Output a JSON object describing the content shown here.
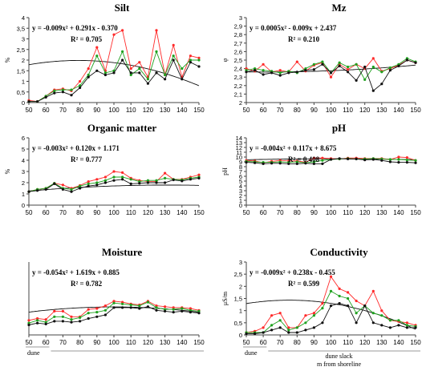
{
  "colors": {
    "red": "#ff2a2a",
    "green": "#1fa11f",
    "black": "#111111",
    "trend": "#111111",
    "axis": "#444444",
    "grid": "#bbbbbb"
  },
  "x_ticks": [
    50,
    60,
    70,
    80,
    90,
    100,
    110,
    120,
    130,
    140,
    150
  ],
  "x_values": [
    50,
    55,
    60,
    65,
    70,
    75,
    80,
    85,
    90,
    95,
    100,
    105,
    110,
    115,
    120,
    125,
    130,
    135,
    140,
    145,
    150
  ],
  "footer": {
    "dune_label": "dune",
    "slack_label": "dune slack",
    "axis_title": "m from shoreline"
  },
  "chart_data": [
    {
      "type": "line",
      "title": "Silt",
      "ylabel": "%",
      "ylim": [
        0,
        4
      ],
      "yticks": [
        "0",
        "0,5",
        "1",
        "1,5",
        "2",
        "2,5",
        "3",
        "3,5",
        "4"
      ],
      "xlim": [
        50,
        150
      ],
      "equation": "y = -0.009x² + 0.291x - 0.370",
      "r2": "R² = 0.705",
      "trend_coeffs": [
        -0.000237,
        0.0375,
        0.5
      ],
      "series": [
        {
          "color": "red",
          "values": [
            0.1,
            0.05,
            0.3,
            0.6,
            0.65,
            0.55,
            1.0,
            1.6,
            2.6,
            1.5,
            3.2,
            3.4,
            1.6,
            1.9,
            1.2,
            3.4,
            1.3,
            2.7,
            1.2,
            2.2,
            2.1
          ]
        },
        {
          "color": "green",
          "values": [
            0.05,
            0.05,
            0.3,
            0.55,
            0.6,
            0.6,
            0.8,
            1.3,
            2.2,
            1.4,
            1.5,
            2.4,
            1.3,
            1.6,
            1.1,
            2.4,
            1.3,
            2.2,
            1.6,
            2.0,
            2.0
          ]
        },
        {
          "color": "black",
          "values": [
            0.05,
            0.05,
            0.25,
            0.45,
            0.5,
            0.35,
            0.7,
            1.2,
            1.5,
            1.3,
            1.4,
            2.0,
            1.4,
            1.4,
            0.9,
            1.4,
            1.1,
            2.0,
            1.1,
            1.9,
            1.7
          ]
        }
      ]
    },
    {
      "type": "line",
      "title": "Mz",
      "ylabel": "φ",
      "ylim": [
        2,
        3
      ],
      "yticks": [
        "2",
        "2,1",
        "2,2",
        "2,3",
        "2,4",
        "2,5",
        "2,6",
        "2,7",
        "2,8",
        "2,9",
        "3"
      ],
      "xlim": [
        50,
        150
      ],
      "equation": "y = 0.0005x² - 0.009x + 2.437",
      "r2": "R² = 0.210",
      "trend_coeffs": [
        1.05e-05,
        -0.0013,
        2.4
      ],
      "series": [
        {
          "color": "red",
          "values": [
            2.4,
            2.37,
            2.45,
            2.36,
            2.38,
            2.36,
            2.48,
            2.37,
            2.44,
            2.47,
            2.3,
            2.45,
            2.39,
            2.45,
            2.4,
            2.52,
            2.37,
            2.4,
            2.44,
            2.5,
            2.47
          ]
        },
        {
          "color": "green",
          "values": [
            2.38,
            2.4,
            2.38,
            2.37,
            2.35,
            2.37,
            2.35,
            2.4,
            2.45,
            2.48,
            2.35,
            2.47,
            2.42,
            2.45,
            2.27,
            2.42,
            2.36,
            2.41,
            2.45,
            2.52,
            2.48
          ]
        },
        {
          "color": "black",
          "values": [
            2.36,
            2.38,
            2.33,
            2.35,
            2.32,
            2.35,
            2.36,
            2.38,
            2.39,
            2.45,
            2.35,
            2.43,
            2.36,
            2.26,
            2.42,
            2.14,
            2.22,
            2.38,
            2.43,
            2.5,
            2.47
          ]
        }
      ]
    },
    {
      "type": "line",
      "title": "Organic matter",
      "ylabel": "%",
      "ylim": [
        0,
        6
      ],
      "yticks": [
        "0",
        "1",
        "2",
        "3",
        "4",
        "5",
        "6"
      ],
      "xlim": [
        50,
        150
      ],
      "equation": "y = -0.003x² + 0.120x + 1.171",
      "r2": "R² = 0.777",
      "trend_coeffs": [
        -8e-05,
        0.021,
        0.41
      ],
      "series": [
        {
          "color": "red",
          "values": [
            1.2,
            1.4,
            1.5,
            1.95,
            1.8,
            1.5,
            1.75,
            2.1,
            2.3,
            2.5,
            3.0,
            2.9,
            2.4,
            2.2,
            2.1,
            2.1,
            2.85,
            2.3,
            2.3,
            2.5,
            2.7
          ]
        },
        {
          "color": "green",
          "values": [
            1.2,
            1.4,
            1.5,
            1.95,
            1.5,
            1.4,
            1.7,
            1.9,
            2.0,
            2.2,
            2.5,
            2.5,
            2.3,
            2.1,
            2.2,
            2.2,
            2.4,
            2.3,
            2.25,
            2.4,
            2.5
          ]
        },
        {
          "color": "black",
          "values": [
            1.2,
            1.3,
            1.4,
            1.9,
            1.4,
            1.2,
            1.5,
            1.7,
            1.8,
            2.0,
            2.2,
            2.3,
            1.9,
            1.95,
            2.0,
            2.0,
            2.0,
            2.25,
            2.15,
            2.3,
            2.4
          ]
        }
      ]
    },
    {
      "type": "line",
      "title": "pH",
      "ylabel": "pH",
      "ylim": [
        0,
        14
      ],
      "yticks": [
        "0",
        "1",
        "2",
        "3",
        "4",
        "5",
        "6",
        "7",
        "8",
        "9",
        "10",
        "11",
        "12",
        "13",
        "14"
      ],
      "xlim": [
        50,
        150
      ],
      "equation": "y = -0.004x² + 0.117x + 8.675",
      "r2": "R² = 0.408",
      "trend_coeffs": [
        -7.86e-05,
        0.0157,
        8.85
      ],
      "series": [
        {
          "color": "red",
          "values": [
            9.3,
            9.2,
            8.8,
            9.1,
            9.3,
            9.2,
            9.2,
            8.9,
            9.8,
            9.8,
            9.7,
            9.6,
            9.8,
            9.8,
            9.7,
            9.7,
            9.7,
            9.5,
            10.0,
            9.9,
            9.3
          ]
        },
        {
          "color": "green",
          "values": [
            9.1,
            9.0,
            8.9,
            8.9,
            9.0,
            8.9,
            9.0,
            8.8,
            9.0,
            9.3,
            9.5,
            9.6,
            9.7,
            9.6,
            9.6,
            9.7,
            9.6,
            9.5,
            9.5,
            9.4,
            9.3
          ]
        },
        {
          "color": "black",
          "values": [
            8.9,
            8.8,
            8.6,
            8.7,
            8.7,
            8.6,
            8.6,
            8.7,
            8.6,
            8.6,
            9.5,
            9.7,
            9.6,
            9.6,
            9.4,
            9.5,
            9.3,
            9.0,
            8.9,
            8.9,
            8.8
          ]
        }
      ]
    },
    {
      "type": "line",
      "title": "Moisture",
      "ylabel": "",
      "ylim": [
        0,
        8
      ],
      "yticks": [],
      "xlim": [
        50,
        150
      ],
      "equation": "y = -0.054x² + 1.619x + 0.885",
      "r2": "R² = 0.782",
      "trend_coeffs": [
        -0.000228,
        0.0455,
        0.8
      ],
      "series": [
        {
          "color": "red",
          "values": [
            1.6,
            1.8,
            1.7,
            2.6,
            2.6,
            2.0,
            2.0,
            2.8,
            2.9,
            3.2,
            3.7,
            3.6,
            3.4,
            3.3,
            3.7,
            3.2,
            3.1,
            3.0,
            3.0,
            2.9,
            2.7
          ]
        },
        {
          "color": "green",
          "values": [
            1.3,
            1.6,
            1.4,
            2.0,
            2.0,
            1.7,
            1.9,
            2.4,
            2.5,
            2.7,
            3.5,
            3.4,
            3.3,
            3.2,
            3.6,
            3.0,
            2.8,
            2.8,
            2.9,
            2.7,
            2.6
          ]
        },
        {
          "color": "black",
          "values": [
            1.1,
            1.3,
            1.2,
            1.5,
            1.5,
            1.4,
            1.5,
            1.8,
            2.0,
            2.2,
            3.0,
            3.0,
            3.0,
            2.9,
            3.1,
            2.7,
            2.6,
            2.5,
            2.6,
            2.5,
            2.4
          ]
        }
      ]
    },
    {
      "type": "line",
      "title": "Conductivity",
      "ylabel": "μS/m",
      "ylim": [
        0,
        3
      ],
      "yticks": [
        "0",
        "0,5",
        "1",
        "1,5",
        "2",
        "2,5",
        "3"
      ],
      "xlim": [
        50,
        150
      ],
      "equation": "y = -0.009x² + 0.238x - 0.455",
      "r2": "R² = 0.599",
      "trend_coeffs": [
        -0.000216,
        0.0326,
        0.2
      ],
      "series": [
        {
          "color": "red",
          "values": [
            0.1,
            0.15,
            0.3,
            0.8,
            0.9,
            0.3,
            0.3,
            0.8,
            0.9,
            1.3,
            2.4,
            1.9,
            1.75,
            1.4,
            1.2,
            1.8,
            1.0,
            0.6,
            0.55,
            0.5,
            0.4
          ]
        },
        {
          "color": "green",
          "values": [
            0.1,
            0.1,
            0.1,
            0.4,
            0.6,
            0.2,
            0.3,
            0.5,
            0.8,
            1.1,
            1.8,
            1.6,
            1.5,
            0.9,
            1.2,
            0.9,
            0.8,
            0.6,
            0.6,
            0.4,
            0.35
          ]
        },
        {
          "color": "black",
          "values": [
            0.05,
            0.05,
            0.1,
            0.2,
            0.3,
            0.1,
            0.1,
            0.2,
            0.3,
            0.5,
            1.2,
            1.3,
            1.2,
            0.5,
            1.2,
            0.5,
            0.4,
            0.3,
            0.4,
            0.3,
            0.3
          ]
        }
      ]
    }
  ]
}
